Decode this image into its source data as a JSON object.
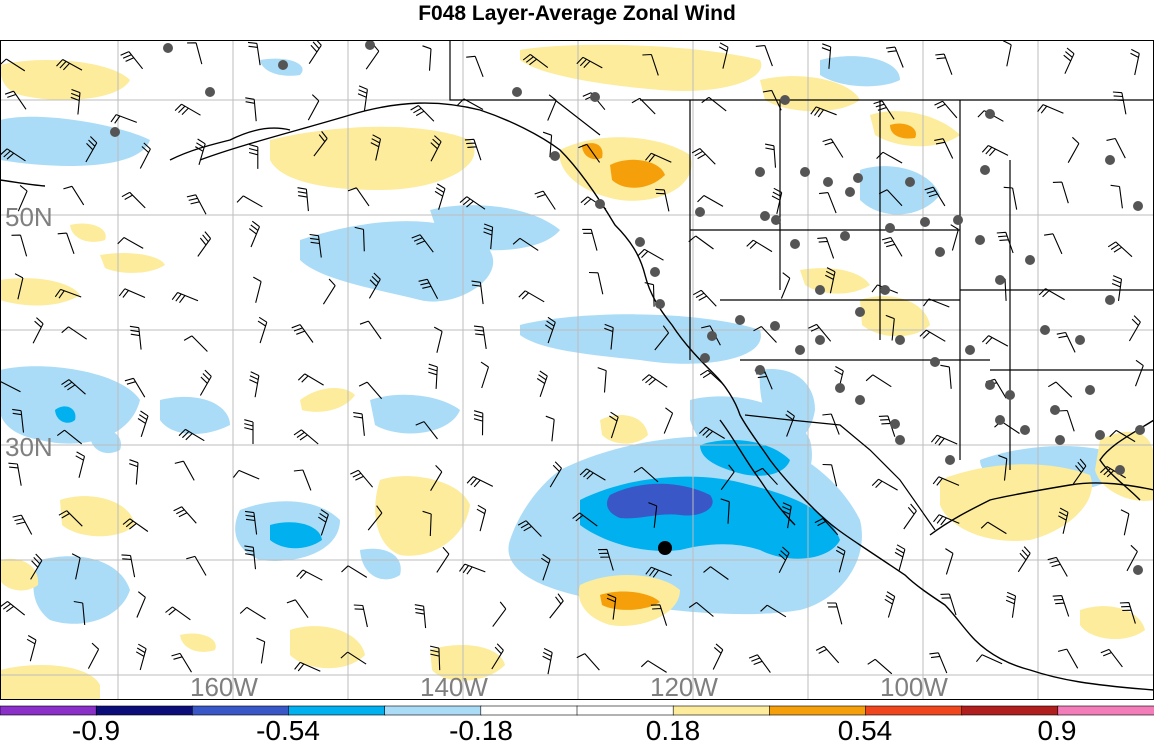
{
  "title": "F048 Layer-Average Zonal Wind",
  "map": {
    "lat_labels": [
      {
        "text": "50N",
        "lat": 50
      },
      {
        "text": "30N",
        "lat": 30
      }
    ],
    "lon_labels": [
      {
        "text": "160W",
        "lon": -160
      },
      {
        "text": "140W",
        "lon": -140
      },
      {
        "text": "120W",
        "lon": -120
      },
      {
        "text": "100W",
        "lon": -100
      }
    ],
    "colors": {
      "gridline": "#bdbdbd",
      "coast": "#000000",
      "station": "#555555",
      "marker": "#000000"
    }
  },
  "colorbar": {
    "colors": [
      "#8a2fc7",
      "#0d0d7a",
      "#3a57c7",
      "#00b0ef",
      "#aadcf7",
      "#ffffff",
      "#ffffff",
      "#fcec9c",
      "#f5a00b",
      "#f0461e",
      "#b01e1e",
      "#f27db8"
    ],
    "labels": [
      "-0.9",
      "-0.54",
      "-0.18",
      "0.18",
      "0.54",
      "0.9"
    ]
  }
}
